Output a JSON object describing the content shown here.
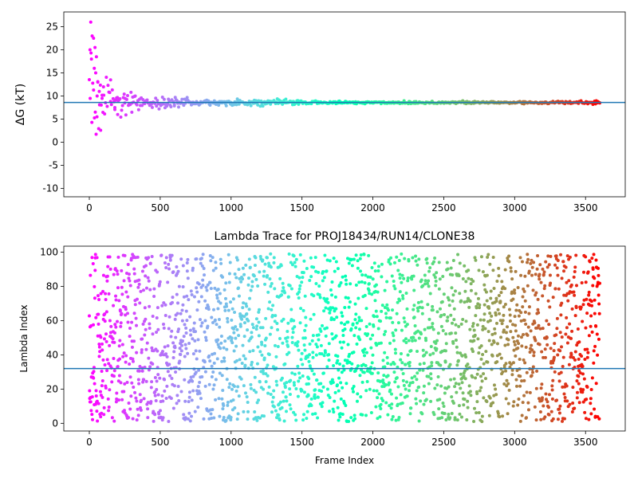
{
  "chart_data": [
    {
      "type": "scatter",
      "title": "",
      "xlabel": "",
      "ylabel": "ΔG (kT)",
      "xlim": [
        -180,
        3780
      ],
      "ylim": [
        -11.8,
        28.2
      ],
      "xticks": [
        0,
        500,
        1000,
        1500,
        2000,
        2500,
        3000,
        3500
      ],
      "yticks": [
        -10,
        -5,
        0,
        5,
        10,
        15,
        20,
        25
      ],
      "reference_line": 8.6,
      "reference_color": "#1f77b4",
      "colormap": "rainbow, reversed (red at frame 0, violet at frame 3600)",
      "frames": [
        0,
        3600
      ],
      "series_description_points": [
        {
          "frame": 5,
          "value": 20.0
        },
        {
          "frame": 10,
          "value": 26.0
        },
        {
          "frame": 15,
          "value": 18.0
        },
        {
          "frame": 20,
          "value": 23.0
        },
        {
          "frame": 30,
          "value": 22.5
        },
        {
          "frame": 35,
          "value": 16.0
        },
        {
          "frame": 40,
          "value": 20.5
        },
        {
          "frame": 45,
          "value": 15.0
        },
        {
          "frame": 50,
          "value": 18.5
        },
        {
          "frame": 55,
          "value": 10.0
        },
        {
          "frame": 60,
          "value": 13.0
        },
        {
          "frame": 70,
          "value": 11.0
        },
        {
          "frame": 80,
          "value": 2.6
        },
        {
          "frame": 90,
          "value": 9.5
        },
        {
          "frame": 100,
          "value": 12.0
        },
        {
          "frame": 150,
          "value": 13.5
        },
        {
          "frame": 180,
          "value": 7.5
        },
        {
          "frame": 200,
          "value": 6.0
        },
        {
          "frame": 250,
          "value": 8.5
        },
        {
          "frame": 300,
          "value": 6.5
        },
        {
          "frame": 400,
          "value": 9.0
        },
        {
          "frame": 600,
          "value": 8.2
        },
        {
          "frame": 1000,
          "value": 8.6
        },
        {
          "frame": 2000,
          "value": 8.5
        },
        {
          "frame": 3000,
          "value": 8.5
        },
        {
          "frame": 3600,
          "value": 8.5
        }
      ]
    },
    {
      "type": "scatter",
      "title": "Lambda Trace for PROJ18434/RUN14/CLONE38",
      "xlabel": "Frame Index",
      "ylabel": "Lambda Index",
      "xlim": [
        -180,
        3780
      ],
      "ylim": [
        -4.5,
        103.5
      ],
      "xticks": [
        0,
        500,
        1000,
        1500,
        2000,
        2500,
        3000,
        3500
      ],
      "yticks": [
        0,
        20,
        40,
        60,
        80,
        100
      ],
      "reference_line": 32,
      "reference_color": "#1f77b4",
      "colormap": "rainbow, reversed (red at frame 0, violet at frame 3600)",
      "frames": [
        0,
        3600
      ],
      "lambda_range": [
        0,
        99
      ]
    }
  ]
}
